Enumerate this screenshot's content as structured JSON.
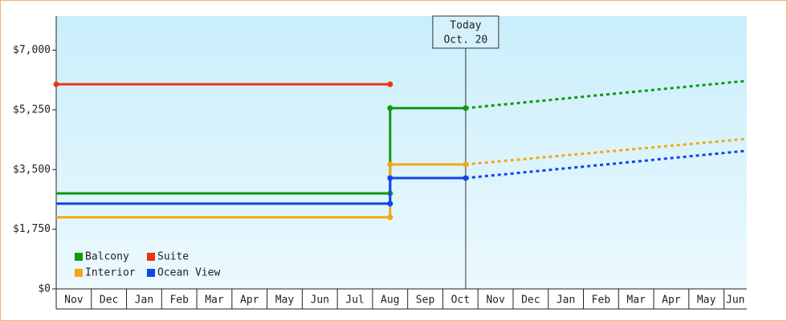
{
  "chart_data": {
    "type": "line",
    "categories": [
      "Nov",
      "Dec",
      "Jan",
      "Feb",
      "Mar",
      "Apr",
      "May",
      "Jun",
      "Jul",
      "Aug",
      "Sep",
      "Oct",
      "Nov",
      "Dec",
      "Jan",
      "Feb",
      "Mar",
      "Apr",
      "May",
      "Jun"
    ],
    "xlim": [
      0,
      19.65
    ],
    "ylim": [
      0,
      8000
    ],
    "yticks": [
      {
        "value": 0,
        "label": "$0"
      },
      {
        "value": 1750,
        "label": "$1,750"
      },
      {
        "value": 3500,
        "label": "$3,500"
      },
      {
        "value": 5250,
        "label": "$5,250"
      },
      {
        "value": 7000,
        "label": "$7,000"
      }
    ],
    "grid": false,
    "legend": "bottom-left",
    "annotation": {
      "lines": [
        "Today",
        "Oct. 20"
      ],
      "x": 11.65
    },
    "series": [
      {
        "name": "Balcony",
        "color": "#119911",
        "x": [
          0,
          9.5,
          9.5,
          11.65
        ],
        "values": [
          2800,
          2800,
          5300,
          5300
        ],
        "forecast": {
          "x": [
            11.65,
            19.65
          ],
          "values": [
            5300,
            6100
          ]
        }
      },
      {
        "name": "Suite",
        "color": "#ee3311",
        "x": [
          0,
          9.5
        ],
        "values": [
          6000,
          6000
        ]
      },
      {
        "name": "Interior",
        "color": "#f5a614",
        "x": [
          0,
          9.5,
          9.5,
          11.65
        ],
        "values": [
          2100,
          2100,
          3650,
          3650
        ],
        "forecast": {
          "x": [
            11.65,
            19.65
          ],
          "values": [
            3650,
            4400
          ]
        }
      },
      {
        "name": "Ocean View",
        "color": "#1144ee",
        "x": [
          0,
          9.5,
          9.5,
          11.65
        ],
        "values": [
          2500,
          2500,
          3250,
          3250
        ],
        "forecast": {
          "x": [
            11.65,
            19.65
          ],
          "values": [
            3250,
            4050
          ]
        }
      }
    ]
  }
}
